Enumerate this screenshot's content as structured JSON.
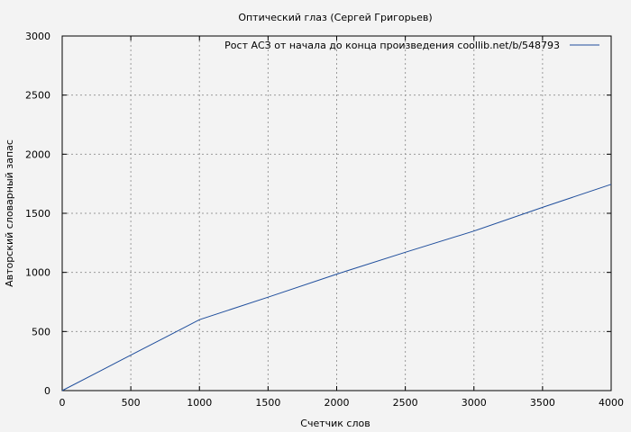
{
  "chart_data": {
    "type": "line",
    "title": "Оптический глаз (Сергей Григорьев)",
    "xlabel": "Счетчик слов",
    "ylabel": "Авторский словарный запас",
    "xlim": [
      0,
      4000
    ],
    "ylim": [
      0,
      3000
    ],
    "x_ticks": [
      0,
      500,
      1000,
      1500,
      2000,
      2500,
      3000,
      3500,
      4000
    ],
    "y_ticks": [
      0,
      500,
      1000,
      1500,
      2000,
      2500,
      3000
    ],
    "grid": true,
    "legend_position": "top-right",
    "series": [
      {
        "name": "Рост АСЗ от начала до конца произведения  coollib.net/b/548793",
        "color": "#1f4e9c",
        "x": [
          0,
          250,
          500,
          750,
          1000,
          1500,
          2000,
          2500,
          3000,
          3500,
          4000
        ],
        "y": [
          0,
          150,
          300,
          450,
          600,
          790,
          985,
          1170,
          1350,
          1550,
          1745
        ]
      }
    ]
  }
}
